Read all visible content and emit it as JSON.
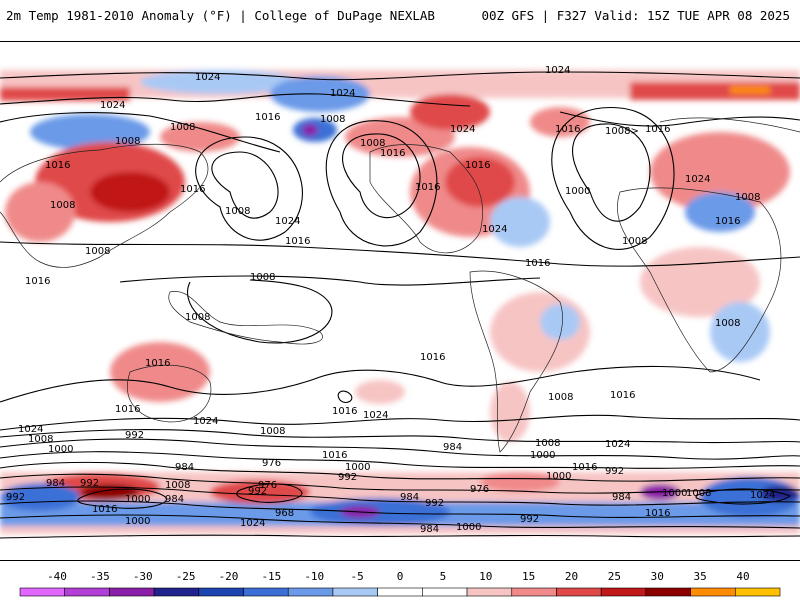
{
  "header": {
    "title_left": "2m Temp 1981-2010 Anomaly (°F) | College of DuPage NEXLAB",
    "title_right": "00Z GFS | F327 Valid: 15Z TUE APR 08 2025"
  },
  "colorbar": {
    "ticks": [
      "-40",
      "-35",
      "-30",
      "-25",
      "-20",
      "-15",
      "-10",
      "-5",
      "0",
      "5",
      "10",
      "15",
      "20",
      "25",
      "30",
      "35",
      "40"
    ],
    "colors": [
      "#e066ff",
      "#b23fd6",
      "#8a1fa8",
      "#22228c",
      "#1c45b0",
      "#3b6fd6",
      "#6b9ae8",
      "#a9c9f5",
      "#ffffff",
      "#ffffff",
      "#f7c4c4",
      "#f08a8a",
      "#e04848",
      "#c01818",
      "#8c0000",
      "#ff8c00",
      "#ffc000"
    ]
  },
  "isobar_labels": [
    {
      "text": "1024",
      "key": "l01"
    },
    {
      "text": "1024",
      "key": "l02"
    },
    {
      "text": "1024",
      "key": "l03"
    },
    {
      "text": "1024",
      "key": "l04"
    },
    {
      "text": "1008",
      "key": "l05"
    },
    {
      "text": "1008",
      "key": "l06"
    },
    {
      "text": "1016",
      "key": "l07"
    },
    {
      "text": "1008",
      "key": "l08"
    },
    {
      "text": "1016",
      "key": "l09"
    },
    {
      "text": "1008",
      "key": "l10"
    },
    {
      "text": "1008",
      "key": "l11"
    },
    {
      "text": "1016",
      "key": "l12"
    },
    {
      "text": "1008",
      "key": "l13"
    },
    {
      "text": "1024",
      "key": "l14"
    },
    {
      "text": "1016",
      "key": "l15"
    },
    {
      "text": "1008",
      "key": "l16"
    },
    {
      "text": "1016",
      "key": "l17"
    },
    {
      "text": "1024",
      "key": "l18"
    },
    {
      "text": "1016",
      "key": "l19"
    },
    {
      "text": "1016",
      "key": "l20"
    },
    {
      "text": "1008>",
      "key": "l21"
    },
    {
      "text": "1016",
      "key": "l22"
    },
    {
      "text": "1016",
      "key": "l23"
    },
    {
      "text": "1000",
      "key": "l24"
    },
    {
      "text": "1024",
      "key": "l25"
    },
    {
      "text": "1008",
      "key": "l26"
    },
    {
      "text": "1016",
      "key": "l27"
    },
    {
      "text": "1024",
      "key": "l28"
    },
    {
      "text": "1016",
      "key": "l29"
    },
    {
      "text": "1008",
      "key": "l30"
    },
    {
      "text": "1016",
      "key": "l31"
    },
    {
      "text": "1008",
      "key": "l32"
    },
    {
      "text": "1008",
      "key": "l33"
    },
    {
      "text": "1008",
      "key": "l34"
    },
    {
      "text": "1016",
      "key": "l35"
    },
    {
      "text": "1016",
      "key": "l36"
    },
    {
      "text": "1016",
      "key": "l37"
    },
    {
      "text": "1024",
      "key": "l38"
    },
    {
      "text": "1016",
      "key": "l39"
    },
    {
      "text": "1024",
      "key": "l40"
    },
    {
      "text": "1008",
      "key": "l41"
    },
    {
      "text": "1016",
      "key": "l42"
    },
    {
      "text": "1008",
      "key": "l43"
    },
    {
      "text": "1024",
      "key": "l44"
    },
    {
      "text": "1008",
      "key": "l45"
    },
    {
      "text": "1000",
      "key": "l46"
    },
    {
      "text": "992",
      "key": "l47"
    },
    {
      "text": "984",
      "key": "l48"
    },
    {
      "text": "976",
      "key": "l49"
    },
    {
      "text": "1008",
      "key": "l50"
    },
    {
      "text": "1016",
      "key": "l51"
    },
    {
      "text": "1000",
      "key": "l52"
    },
    {
      "text": "992",
      "key": "l53"
    },
    {
      "text": "984",
      "key": "l54"
    },
    {
      "text": "1000",
      "key": "l55"
    },
    {
      "text": "1008",
      "key": "l56"
    },
    {
      "text": "976",
      "key": "l57"
    },
    {
      "text": "984",
      "key": "l58"
    },
    {
      "text": "992",
      "key": "l59"
    },
    {
      "text": "1000",
      "key": "l60"
    },
    {
      "text": "1016",
      "key": "l61"
    },
    {
      "text": "1024",
      "key": "l62"
    },
    {
      "text": "992",
      "key": "l63"
    },
    {
      "text": "984",
      "key": "l64"
    },
    {
      "text": "1000",
      "key": "l65"
    },
    {
      "text": "1008",
      "key": "l66"
    },
    {
      "text": "1024",
      "key": "l67"
    },
    {
      "text": "1016",
      "key": "l68"
    },
    {
      "text": "992",
      "key": "l69"
    },
    {
      "text": "984",
      "key": "l70"
    },
    {
      "text": "992",
      "key": "l71"
    },
    {
      "text": "1000",
      "key": "l72"
    },
    {
      "text": "984",
      "key": "l73"
    },
    {
      "text": "976",
      "key": "l74"
    },
    {
      "text": "1000",
      "key": "l75"
    },
    {
      "text": "1016",
      "key": "l76"
    },
    {
      "text": "1024",
      "key": "l77"
    },
    {
      "text": "992",
      "key": "l78"
    },
    {
      "text": "968",
      "key": "l79"
    },
    {
      "text": "984",
      "key": "l80"
    },
    {
      "text": "1000",
      "key": "l81"
    },
    {
      "text": "992",
      "key": "l82"
    }
  ]
}
